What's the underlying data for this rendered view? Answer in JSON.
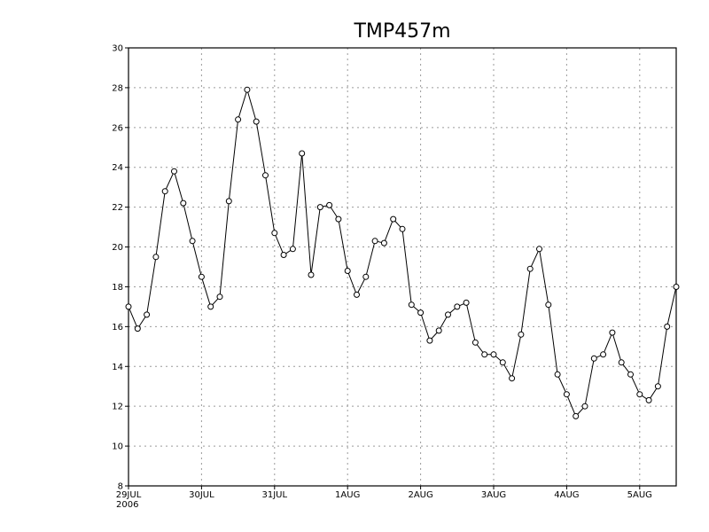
{
  "chart_data": {
    "type": "line",
    "title": "TMP457m",
    "xlabel": "",
    "ylabel": "",
    "ylim": [
      8,
      30
    ],
    "yticks": [
      8,
      10,
      12,
      14,
      16,
      18,
      20,
      22,
      24,
      26,
      28,
      30
    ],
    "grid": true,
    "x_ticks": [
      {
        "label": "29JUL",
        "sublabel": "2006",
        "t": 0
      },
      {
        "label": "30JUL",
        "sublabel": "",
        "t": 1
      },
      {
        "label": "31JUL",
        "sublabel": "",
        "t": 2
      },
      {
        "label": "1AUG",
        "sublabel": "",
        "t": 3
      },
      {
        "label": "2AUG",
        "sublabel": "",
        "t": 4
      },
      {
        "label": "3AUG",
        "sublabel": "",
        "t": 5
      },
      {
        "label": "4AUG",
        "sublabel": "",
        "t": 6
      },
      {
        "label": "5AUG",
        "sublabel": "",
        "t": 7
      }
    ],
    "xlim": [
      0,
      7.5
    ],
    "t": [
      0,
      0.125,
      0.25,
      0.375,
      0.5,
      0.625,
      0.75,
      0.875,
      1,
      1.125,
      1.25,
      1.375,
      1.5,
      1.625,
      1.75,
      1.875,
      2,
      2.125,
      2.25,
      2.375,
      2.5,
      2.625,
      2.75,
      2.875,
      3,
      3.125,
      3.25,
      3.375,
      3.5,
      3.625,
      3.75,
      3.875,
      4,
      4.125,
      4.25,
      4.375,
      4.5,
      4.625,
      4.75,
      4.875,
      5,
      5.125,
      5.25,
      5.375,
      5.5,
      5.625,
      5.75,
      5.875,
      6,
      6.125,
      6.25,
      6.375,
      6.5,
      6.625,
      6.75,
      6.875,
      7,
      7.125,
      7.25,
      7.375,
      7.5
    ],
    "values": [
      17.0,
      15.9,
      16.6,
      19.5,
      22.8,
      23.8,
      22.2,
      20.3,
      18.5,
      17.0,
      17.5,
      22.3,
      26.4,
      27.9,
      26.3,
      23.6,
      20.7,
      19.6,
      19.9,
      24.7,
      18.6,
      22.0,
      22.1,
      21.4,
      18.8,
      17.6,
      18.5,
      20.3,
      20.2,
      21.4,
      20.9,
      17.1,
      16.7,
      15.3,
      15.8,
      16.6,
      17.0,
      17.2,
      15.2,
      14.6,
      14.6,
      14.2,
      13.4,
      15.6,
      18.9,
      19.9,
      17.1,
      13.6,
      12.6,
      11.5,
      12.0,
      14.4,
      14.6,
      15.7,
      14.2,
      13.6,
      12.6,
      12.3,
      13.0,
      16.0,
      18.0
    ]
  }
}
